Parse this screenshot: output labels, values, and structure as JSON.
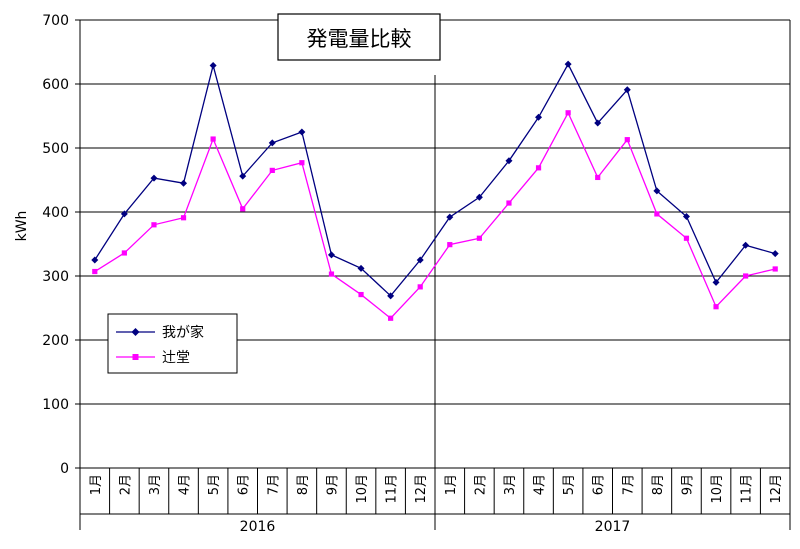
{
  "chart_data": {
    "type": "line",
    "title": "発電量比較",
    "xlabel": "",
    "ylabel": "kWh",
    "ylim": [
      0,
      700
    ],
    "y_ticks": [
      0,
      100,
      200,
      300,
      400,
      500,
      600,
      700
    ],
    "grid": true,
    "legend_position": "left",
    "categories": [
      "1月",
      "2月",
      "3月",
      "4月",
      "5月",
      "6月",
      "7月",
      "8月",
      "9月",
      "10月",
      "11月",
      "12月",
      "1月",
      "2月",
      "3月",
      "4月",
      "5月",
      "6月",
      "7月",
      "8月",
      "9月",
      "10月",
      "11月",
      "12月"
    ],
    "groups": [
      {
        "label": "2016",
        "count": 12
      },
      {
        "label": "2017",
        "count": 12
      }
    ],
    "series": [
      {
        "name": "我が家",
        "color": "#000080",
        "marker": "diamond",
        "values": [
          325,
          397,
          453,
          445,
          629,
          456,
          508,
          525,
          333,
          312,
          269,
          325,
          392,
          423,
          480,
          548,
          631,
          539,
          591,
          433,
          393,
          290,
          348,
          335
        ]
      },
      {
        "name": "辻堂",
        "color": "#FF00FF",
        "marker": "square",
        "values": [
          307,
          336,
          380,
          391,
          514,
          405,
          465,
          477,
          303,
          271,
          234,
          283,
          349,
          359,
          414,
          469,
          555,
          454,
          513,
          397,
          359,
          252,
          300,
          311
        ]
      }
    ]
  }
}
